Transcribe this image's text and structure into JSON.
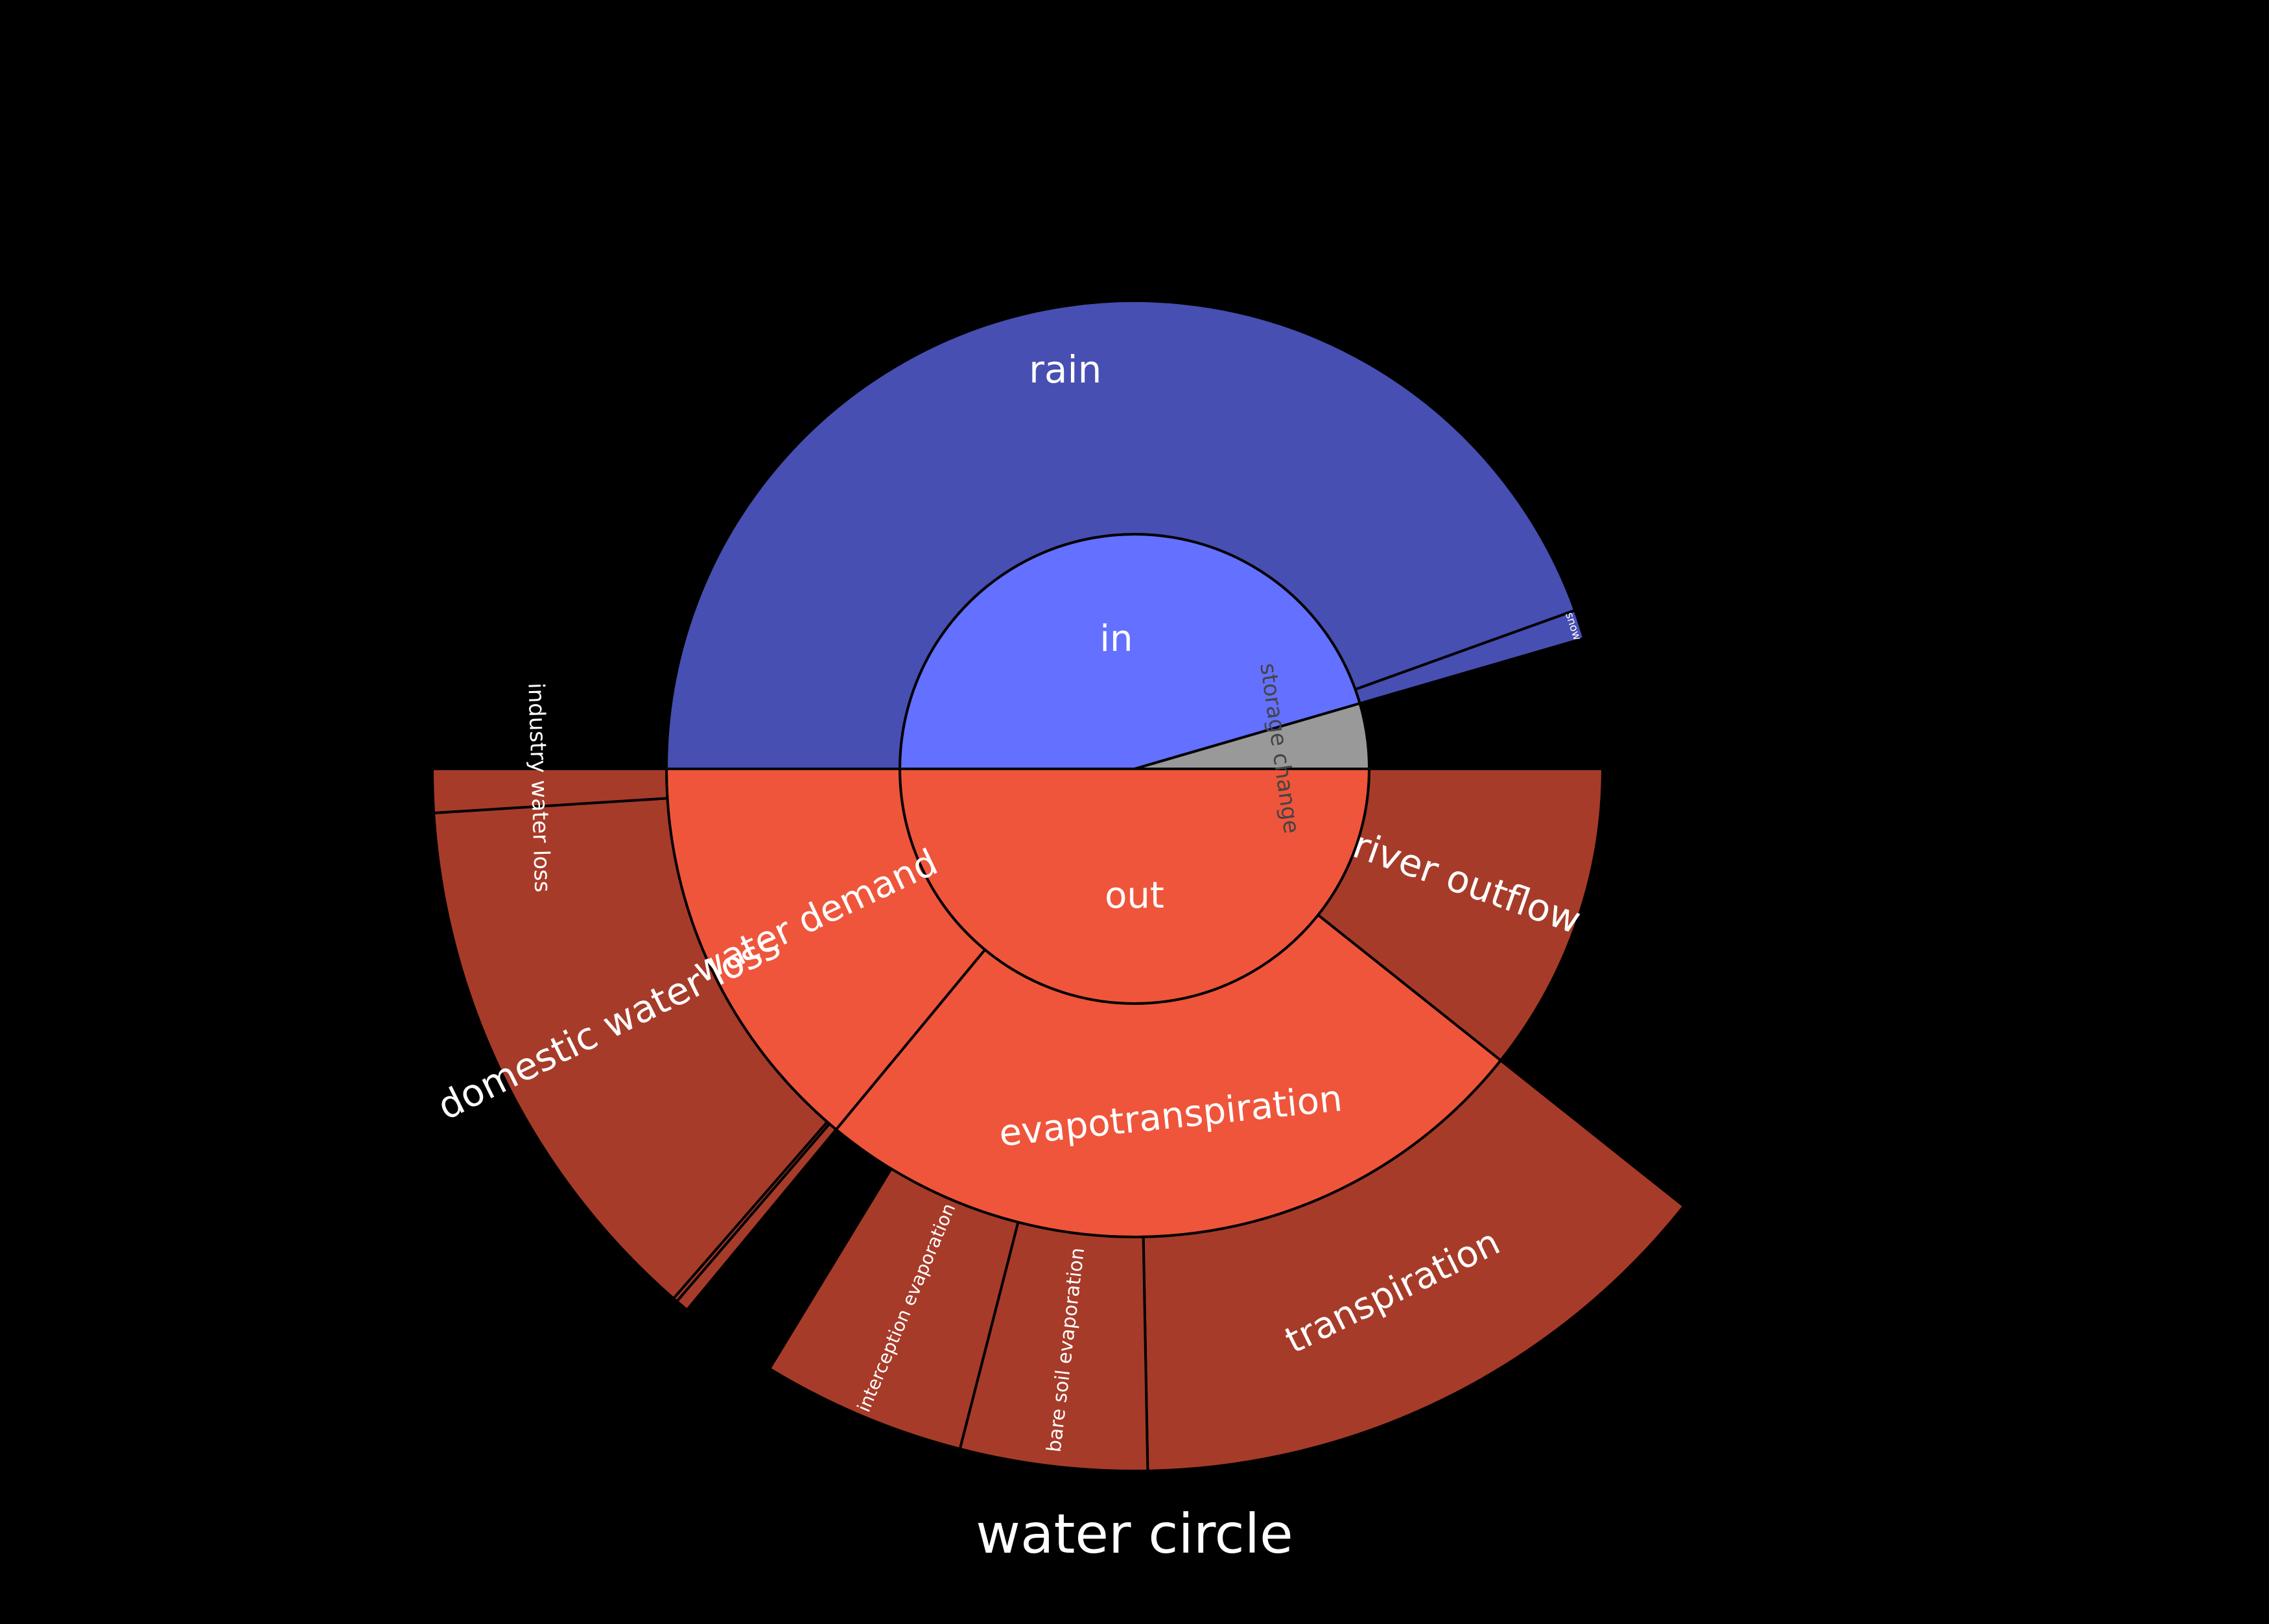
{
  "chart_data": {
    "type": "sunburst",
    "title": "water circle",
    "unit_note": "",
    "colors": {
      "background": "#000000",
      "in_inner": "#6470FF",
      "in_outer": "#474FB2",
      "out_inner": "#EF553B",
      "out_outer": "#A73B29",
      "storage": "#999999",
      "label_light": "#FFFFFF",
      "label_dark": "#444444",
      "edge": "#000000"
    },
    "rings": {
      "inner": [
        {
          "label": "in",
          "value": 45.5,
          "color_key": "in_inner"
        },
        {
          "label": "storage change",
          "value": 4.5,
          "color_key": "storage"
        },
        {
          "label": "out",
          "value": 50.0,
          "color_key": "out_inner"
        }
      ],
      "middle": [
        {
          "label": "rain",
          "value": 44.5,
          "parent": "in",
          "color_key": "in_outer"
        },
        {
          "label": "snow",
          "value": 1.0,
          "parent": "in",
          "color_key": "in_outer"
        },
        {
          "label": "",
          "value": 4.5,
          "parent": "storage change",
          "color_key": "gap"
        },
        {
          "label": "river outflow",
          "value": 10.7,
          "parent": "out",
          "color_key": "out_outer"
        },
        {
          "label": "evapotranspiration",
          "value": 25.3,
          "parent": "out",
          "color_key": "out_inner"
        },
        {
          "label": "water demand",
          "value": 14.0,
          "parent": "out",
          "color_key": "out_inner"
        }
      ],
      "outer": [
        {
          "label": "",
          "value": 50.0,
          "parent": "in-storage",
          "color_key": "gap"
        },
        {
          "label": "",
          "value": 10.7,
          "parent": "river outflow",
          "color_key": "gap"
        },
        {
          "label": "transpiration",
          "value": 14.0,
          "parent": "evapotranspiration",
          "color_key": "out_outer"
        },
        {
          "label": "bare soil evaporation",
          "value": 4.3,
          "parent": "evapotranspiration",
          "color_key": "out_outer"
        },
        {
          "label": "interception evaporation",
          "value": 4.7,
          "parent": "evapotranspiration",
          "color_key": "out_outer"
        },
        {
          "label": "",
          "value": 2.3,
          "parent": "evapotranspiration",
          "color_key": "gap"
        },
        {
          "label": "",
          "value": 0.3,
          "parent": "water demand",
          "color_key": "out_outer"
        },
        {
          "label": "",
          "value": 0.1,
          "parent": "water demand",
          "color_key": "out_outer"
        },
        {
          "label": "domestic water loss",
          "value": 12.6,
          "parent": "water demand",
          "color_key": "out_outer"
        },
        {
          "label": "industry water loss",
          "value": 1.0,
          "parent": "water demand",
          "color_key": "out_outer"
        }
      ]
    }
  }
}
